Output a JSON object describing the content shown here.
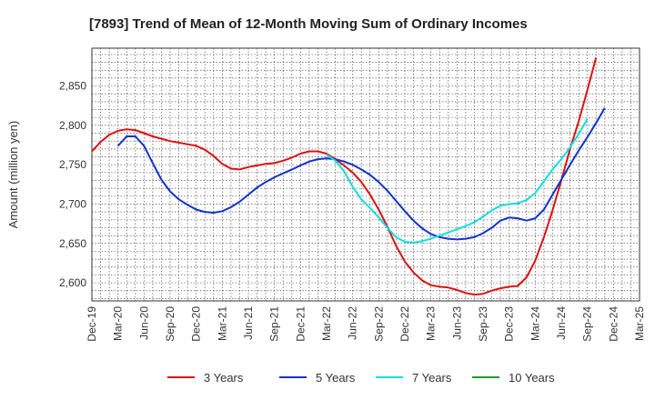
{
  "chart_data": {
    "type": "line",
    "title": "[7893]  Trend of Mean of 12-Month Moving Sum of Ordinary Incomes",
    "xlabel": "",
    "ylabel": "Amount (million yen)",
    "ylim": [
      2577,
      2898
    ],
    "grid": true,
    "legend_position": "bottom",
    "x_tick_labels": [
      "Dec-19",
      "Mar-20",
      "Jun-20",
      "Sep-20",
      "Dec-20",
      "Mar-21",
      "Jun-21",
      "Sep-21",
      "Dec-21",
      "Mar-22",
      "Jun-22",
      "Sep-22",
      "Dec-22",
      "Mar-23",
      "Jun-23",
      "Sep-23",
      "Dec-23",
      "Mar-24",
      "Jun-24",
      "Sep-24",
      "Dec-24",
      "Mar-25"
    ],
    "y_ticks": [
      {
        "value": 2600,
        "label": "2,600"
      },
      {
        "value": 2650,
        "label": "2,650"
      },
      {
        "value": 2700,
        "label": "2,700"
      },
      {
        "value": 2750,
        "label": "2,750"
      },
      {
        "value": 2800,
        "label": "2,800"
      },
      {
        "value": 2850,
        "label": "2,850"
      }
    ],
    "series": [
      {
        "name": "3 Years",
        "color": "#dd1111",
        "start_index": 0,
        "values": [
          2767,
          2779,
          2788,
          2793,
          2795,
          2794,
          2790,
          2786,
          2783,
          2780,
          2778,
          2776,
          2774,
          2769,
          2761,
          2751,
          2745,
          2744,
          2747,
          2749,
          2751,
          2752,
          2755,
          2759,
          2764,
          2767,
          2767,
          2764,
          2757,
          2749,
          2740,
          2728,
          2712,
          2693,
          2671,
          2647,
          2627,
          2613,
          2603,
          2597,
          2595,
          2594,
          2591,
          2587,
          2585,
          2586,
          2590,
          2593,
          2595,
          2596,
          2607,
          2628,
          2658,
          2692,
          2730,
          2770,
          2805,
          2845,
          2886
        ]
      },
      {
        "name": "5 Years",
        "color": "#1133cc",
        "start_index": 3,
        "values": [
          2774,
          2786,
          2786,
          2774,
          2752,
          2731,
          2716,
          2706,
          2699,
          2693,
          2690,
          2689,
          2691,
          2696,
          2703,
          2712,
          2721,
          2728,
          2734,
          2739,
          2744,
          2749,
          2754,
          2757,
          2758,
          2757,
          2754,
          2750,
          2744,
          2737,
          2728,
          2717,
          2704,
          2691,
          2679,
          2669,
          2662,
          2658,
          2656,
          2655,
          2656,
          2658,
          2663,
          2670,
          2679,
          2683,
          2682,
          2679,
          2682,
          2693,
          2712,
          2731,
          2750,
          2768,
          2785,
          2803,
          2822
        ]
      },
      {
        "name": "7 Years",
        "color": "#11dddd",
        "start_index": 27,
        "values": [
          2763,
          2755,
          2742,
          2722,
          2706,
          2695,
          2683,
          2670,
          2658,
          2652,
          2651,
          2653,
          2656,
          2660,
          2664,
          2668,
          2672,
          2677,
          2684,
          2692,
          2698,
          2700,
          2701,
          2705,
          2714,
          2729,
          2744,
          2757,
          2772,
          2789,
          2808
        ]
      },
      {
        "name": "10 Years",
        "color": "#229922",
        "start_index": 0,
        "values": []
      }
    ]
  }
}
